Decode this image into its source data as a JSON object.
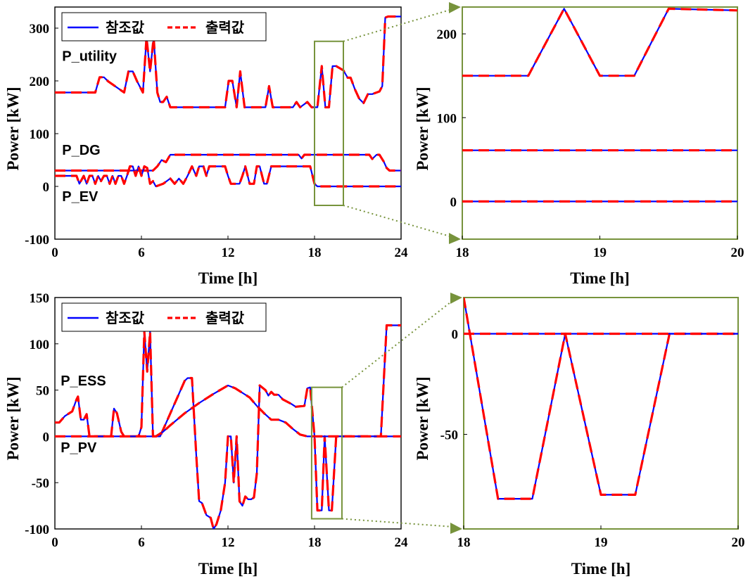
{
  "colors": {
    "reference": "#0000ff",
    "output": "#ff0000",
    "zoom_box": "#77933c"
  },
  "legend": {
    "reference": "참조값",
    "output": "출력값"
  },
  "chart_data": [
    {
      "id": "top_main",
      "type": "line",
      "xlabel": "Time [h]",
      "ylabel": "Power [kW]",
      "xlim": [
        0,
        24
      ],
      "ylim": [
        -100,
        340
      ],
      "xticks": [
        0,
        6,
        12,
        18,
        24
      ],
      "yticks": [
        -100,
        0,
        100,
        200,
        300
      ],
      "legend": true,
      "annotations": [
        {
          "text": "P_utility",
          "x": 0.5,
          "y": 238
        },
        {
          "text": "P_DG",
          "x": 0.5,
          "y": 60
        },
        {
          "text": "P_EV",
          "x": 0.5,
          "y": -28
        }
      ],
      "zoom_box": {
        "x": [
          18,
          20
        ],
        "y": [
          -36,
          275
        ]
      },
      "series": [
        {
          "label": "P_utility",
          "x": [
            0,
            2.8,
            3.1,
            3.4,
            3.7,
            4.8,
            5.1,
            5.4,
            5.7,
            6.1,
            6.35,
            6.6,
            6.85,
            7.1,
            7.3,
            7.5,
            7.75,
            8,
            11.8,
            12.05,
            12.3,
            12.6,
            12.85,
            13.15,
            13.4,
            14.6,
            14.85,
            15.1,
            16.5,
            16.75,
            17,
            17.5,
            17.8,
            18,
            18.2,
            18.5,
            18.75,
            19,
            19.25,
            19.5,
            20,
            20.3,
            20.5,
            20.8,
            21.1,
            21.4,
            21.7,
            22,
            22.3,
            22.5,
            22.7,
            22.9,
            23.1,
            23.6,
            24
          ],
          "y": [
            178,
            178,
            207,
            207,
            199,
            178,
            218,
            218,
            199,
            178,
            282,
            218,
            282,
            178,
            160,
            160,
            170,
            150,
            150,
            200,
            200,
            150,
            218,
            150,
            150,
            150,
            190,
            150,
            150,
            160,
            150,
            160,
            150,
            150,
            150,
            228,
            150,
            150,
            228,
            228,
            220,
            206,
            206,
            184,
            166,
            158,
            175,
            175,
            178,
            180,
            190,
            320,
            322,
            322,
            322
          ]
        },
        {
          "label": "P_DG",
          "x": [
            0,
            6.8,
            7.1,
            7.4,
            7.7,
            8,
            16.9,
            17.1,
            17.3,
            17.6,
            18,
            21.8,
            22,
            22.3,
            22.5,
            22.8,
            23,
            23.2,
            24
          ],
          "y": [
            30,
            30,
            38,
            50,
            46,
            60,
            60,
            53,
            60,
            60,
            60,
            60,
            52,
            60,
            60,
            47,
            35,
            30,
            30
          ]
        },
        {
          "label": "P_EV",
          "x": [
            0,
            1.5,
            1.7,
            2,
            2.2,
            2.4,
            2.6,
            2.8,
            3,
            3.2,
            3.4,
            3.6,
            3.8,
            4,
            4.2,
            4.4,
            4.6,
            4.8,
            5,
            5.2,
            5.4,
            5.6,
            5.8,
            6,
            6.2,
            6.4,
            6.6,
            6.8,
            7,
            7.5,
            8,
            8.3,
            8.6,
            8.9,
            9.2,
            9.5,
            9.8,
            10,
            10.3,
            10.5,
            10.7,
            11,
            11.2,
            11.8,
            12,
            12.2,
            12.5,
            12.8,
            13,
            13.2,
            13.5,
            13.8,
            14,
            14.2,
            14.5,
            14.7,
            15,
            17.7,
            18,
            18.2,
            24
          ],
          "y": [
            20,
            20,
            5,
            20,
            5,
            20,
            20,
            5,
            20,
            10,
            20,
            20,
            5,
            20,
            5,
            20,
            20,
            5,
            20,
            38,
            38,
            20,
            38,
            20,
            38,
            35,
            5,
            10,
            0,
            5,
            15,
            5,
            15,
            5,
            20,
            38,
            20,
            38,
            38,
            20,
            38,
            38,
            38,
            38,
            20,
            5,
            5,
            5,
            20,
            38,
            5,
            5,
            38,
            38,
            5,
            5,
            38,
            38,
            5,
            0,
            0
          ]
        }
      ]
    },
    {
      "id": "top_zoom",
      "type": "line",
      "xlabel": "Time [h]",
      "ylabel": "Power [kW]",
      "xlim": [
        18,
        20
      ],
      "ylim": [
        -45,
        232
      ],
      "xticks": [
        18,
        19,
        20
      ],
      "yticks": [
        0,
        100,
        200
      ],
      "series": [
        {
          "label": "P_utility",
          "x": [
            18,
            18.48,
            18.74,
            19,
            19.25,
            19.5,
            20
          ],
          "y": [
            150,
            150,
            230,
            150,
            150,
            230,
            228
          ]
        },
        {
          "label": "P_DG",
          "x": [
            18,
            20
          ],
          "y": [
            61,
            61
          ]
        },
        {
          "label": "P_EV",
          "x": [
            18,
            20
          ],
          "y": [
            0,
            0
          ]
        }
      ]
    },
    {
      "id": "bottom_main",
      "type": "line",
      "xlabel": "Time [h]",
      "ylabel": "Power [kW]",
      "xlim": [
        0,
        24
      ],
      "ylim": [
        -100,
        150
      ],
      "xticks": [
        0,
        6,
        12,
        18,
        24
      ],
      "yticks": [
        -100,
        -50,
        0,
        50,
        100,
        150
      ],
      "legend": true,
      "annotations": [
        {
          "text": "P_ESS",
          "x": 0.4,
          "y": 55
        },
        {
          "text": "P_PV",
          "x": 0.4,
          "y": -17
        }
      ],
      "zoom_box": {
        "x": [
          17.8,
          19.9
        ],
        "y": [
          -89,
          53
        ]
      },
      "series": [
        {
          "label": "P_ESS",
          "x": [
            0,
            0.3,
            0.7,
            1.2,
            1.5,
            1.6,
            1.8,
            2,
            2.2,
            2.4,
            2.6,
            3.9,
            4.1,
            4.3,
            4.6,
            4.8,
            5.8,
            6,
            6.2,
            6.4,
            6.6,
            6.8,
            7,
            7.3,
            9,
            9.2,
            9.5,
            9.8,
            10,
            10.2,
            10.5,
            10.8,
            11,
            11.2,
            11.5,
            11.8,
            12,
            12.2,
            12.4,
            12.6,
            12.8,
            13,
            13.2,
            13.4,
            13.6,
            13.8,
            14,
            14.2,
            14.6,
            14.8,
            15,
            15.2,
            15.5,
            15.8,
            16.4,
            16.7,
            17.3,
            17.5,
            17.7,
            18,
            18.2,
            18.5,
            18.7,
            19,
            19.2,
            19.5,
            22.6,
            22.8,
            23,
            23.3,
            24
          ],
          "y": [
            15,
            15,
            22,
            27,
            40,
            43,
            18,
            18,
            24,
            0,
            0,
            0,
            30,
            25,
            5,
            0,
            0,
            10,
            113,
            70,
            113,
            0,
            0,
            0,
            60,
            63,
            63,
            -20,
            -70,
            -72,
            -85,
            -88,
            -100,
            -95,
            -80,
            -50,
            0,
            0,
            -50,
            0,
            -70,
            -75,
            -65,
            -68,
            -68,
            -66,
            -40,
            55,
            50,
            44,
            48,
            45,
            45,
            40,
            35,
            32,
            33,
            52,
            53,
            0,
            -80,
            -80,
            0,
            -80,
            -80,
            0,
            0,
            60,
            120,
            120,
            120
          ]
        },
        {
          "label": "P_PV",
          "x": [
            0,
            6.5,
            7,
            7.5,
            8,
            9,
            10,
            11,
            12,
            12.5,
            13,
            13.5,
            14,
            14.5,
            15,
            15.5,
            16,
            16.5,
            17,
            17.5,
            18,
            24
          ],
          "y": [
            0,
            0,
            0,
            5,
            12,
            25,
            36,
            46,
            55,
            52,
            47,
            42,
            33,
            25,
            18,
            18,
            15,
            8,
            2,
            0,
            0,
            0
          ]
        }
      ]
    },
    {
      "id": "bottom_zoom",
      "type": "line",
      "xlabel": "Time [h]",
      "ylabel": "Power [kW]",
      "xlim": [
        18,
        20
      ],
      "ylim": [
        -97,
        18
      ],
      "xticks": [
        18,
        19,
        20
      ],
      "yticks": [
        -50,
        0
      ],
      "series": [
        {
          "label": "P_ESS",
          "x": [
            18,
            18.25,
            18.5,
            18.74,
            19,
            19.25,
            19.5,
            20
          ],
          "y": [
            18,
            -82,
            -82,
            0,
            -80,
            -80,
            0,
            0
          ]
        },
        {
          "label": "P_PV",
          "x": [
            18,
            20
          ],
          "y": [
            0,
            0
          ]
        }
      ]
    }
  ]
}
